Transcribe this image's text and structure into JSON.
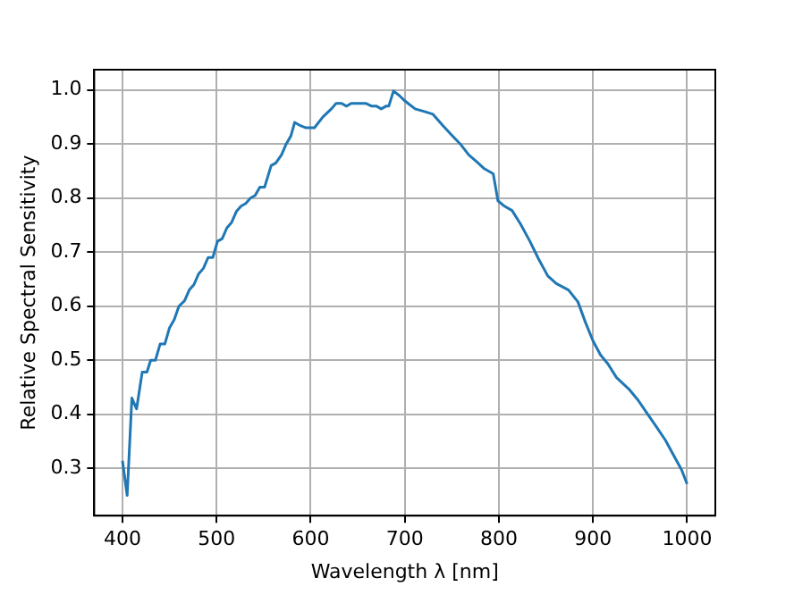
{
  "chart_data": {
    "type": "line",
    "xlabel": "Wavelength λ [nm]",
    "ylabel": "Relative Spectral Sensitivity",
    "grid": true,
    "marker": "none",
    "line_style": "solid",
    "xlim": [
      370,
      1030
    ],
    "xticks": [
      400,
      500,
      600,
      700,
      800,
      900,
      1000
    ],
    "ylim": [
      0.2125,
      1.0375
    ],
    "yticks": [
      {
        "value": 0.3,
        "label": "0.3"
      },
      {
        "value": 0.4,
        "label": "0.4"
      },
      {
        "value": 0.5,
        "label": "0.5"
      },
      {
        "value": 0.6,
        "label": "0.6"
      },
      {
        "value": 0.7,
        "label": "0.7"
      },
      {
        "value": 0.8,
        "label": "0.8"
      },
      {
        "value": 0.9,
        "label": "0.9"
      },
      {
        "value": 1.0,
        "label": "1.0"
      }
    ],
    "series": [
      {
        "color": "#1f77b4",
        "x": [
          400,
          405,
          410,
          415,
          421,
          426,
          430,
          435,
          440,
          445,
          450,
          455,
          460,
          466,
          471,
          476,
          481,
          486,
          491,
          496,
          501,
          506,
          511,
          516,
          521,
          526,
          531,
          536,
          541,
          546,
          551,
          558,
          563,
          569,
          574,
          579,
          583,
          588,
          595,
          600,
          604,
          613,
          622,
          627,
          633,
          638,
          643,
          653,
          659,
          665,
          670,
          675,
          680,
          683,
          688,
          694,
          700,
          705,
          711,
          721,
          730,
          740,
          749,
          759,
          768,
          776,
          784,
          794,
          799,
          806,
          814,
          823,
          833,
          842,
          852,
          861,
          874,
          884,
          892,
          900,
          908,
          916,
          925,
          938,
          948,
          957,
          967,
          977,
          986,
          994,
          1000
        ],
        "values": [
          0.314,
          0.25,
          0.43,
          0.41,
          0.478,
          0.478,
          0.5,
          0.5,
          0.53,
          0.53,
          0.56,
          0.575,
          0.6,
          0.61,
          0.63,
          0.64,
          0.66,
          0.67,
          0.69,
          0.69,
          0.72,
          0.725,
          0.745,
          0.755,
          0.775,
          0.785,
          0.79,
          0.8,
          0.805,
          0.82,
          0.82,
          0.86,
          0.865,
          0.88,
          0.9,
          0.915,
          0.94,
          0.935,
          0.93,
          0.93,
          0.93,
          0.95,
          0.965,
          0.975,
          0.975,
          0.97,
          0.975,
          0.975,
          0.975,
          0.97,
          0.97,
          0.965,
          0.97,
          0.97,
          0.998,
          0.99,
          0.98,
          0.973,
          0.965,
          0.96,
          0.955,
          0.935,
          0.918,
          0.9,
          0.88,
          0.868,
          0.855,
          0.845,
          0.795,
          0.785,
          0.777,
          0.752,
          0.72,
          0.688,
          0.656,
          0.642,
          0.63,
          0.608,
          0.57,
          0.536,
          0.51,
          0.493,
          0.468,
          0.447,
          0.426,
          0.403,
          0.378,
          0.352,
          0.323,
          0.298,
          0.271
        ]
      }
    ]
  }
}
